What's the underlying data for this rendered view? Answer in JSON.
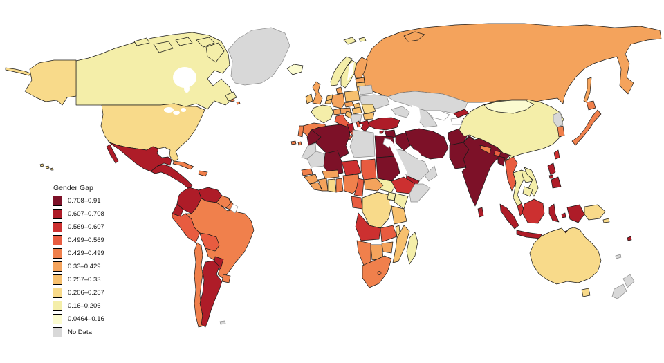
{
  "legend": {
    "title": "Gender Gap",
    "items": [
      {
        "label": "0.708–0.91",
        "color": "#7d1128"
      },
      {
        "label": "0.607–0.708",
        "color": "#ae1c28"
      },
      {
        "label": "0.569–0.607",
        "color": "#cc3030"
      },
      {
        "label": "0.499–0.569",
        "color": "#e85c40"
      },
      {
        "label": "0.429–0.499",
        "color": "#f0804c"
      },
      {
        "label": "0.33–0.429",
        "color": "#f4a35c"
      },
      {
        "label": "0.257–0.33",
        "color": "#f7c06e"
      },
      {
        "label": "0.206–0.257",
        "color": "#f8da8a"
      },
      {
        "label": "0.16–0.206",
        "color": "#f4eea9"
      },
      {
        "label": "0.0464–0.16",
        "color": "#fbfbd0"
      },
      {
        "label": "No Data",
        "color": "#d8d8d8"
      }
    ]
  },
  "colors": {
    "background": "#ffffff",
    "country_border": "#1a1a1a",
    "no_data_border": "#8a8a8a",
    "unfilled_border": "#999999"
  },
  "chart_data": {
    "type": "choropleth",
    "title": "Gender Gap",
    "legend_position": "left-bottom",
    "bins": [
      {
        "label": "0.708–0.91",
        "color": "#7d1128"
      },
      {
        "label": "0.607–0.708",
        "color": "#ae1c28"
      },
      {
        "label": "0.569–0.607",
        "color": "#cc3030"
      },
      {
        "label": "0.499–0.569",
        "color": "#e85c40"
      },
      {
        "label": "0.429–0.499",
        "color": "#f0804c"
      },
      {
        "label": "0.33–0.429",
        "color": "#f4a35c"
      },
      {
        "label": "0.257–0.33",
        "color": "#f7c06e"
      },
      {
        "label": "0.206–0.257",
        "color": "#f8da8a"
      },
      {
        "label": "0.16–0.206",
        "color": "#f4eea9"
      },
      {
        "label": "0.0464–0.16",
        "color": "#fbfbd0"
      },
      {
        "label": "No Data",
        "color": "#d8d8d8"
      }
    ],
    "countries": [
      {
        "name": "Russia",
        "bin": "0.33–0.429"
      },
      {
        "name": "Kazakhstan",
        "bin": "No Data"
      },
      {
        "name": "Turkmenistan",
        "bin": "No Data"
      },
      {
        "name": "Kyrgyzstan",
        "bin": "0.607–0.708"
      },
      {
        "name": "Caucasus",
        "bin": "No Data"
      },
      {
        "name": "Norway",
        "bin": "0.16–0.206"
      },
      {
        "name": "Sweden",
        "bin": "0.16–0.206"
      },
      {
        "name": "Finland",
        "bin": "0.33–0.429"
      },
      {
        "name": "Estonia",
        "bin": "0.33–0.429"
      },
      {
        "name": "Latvia",
        "bin": "0.257–0.33"
      },
      {
        "name": "Lithuania",
        "bin": "0.257–0.33"
      },
      {
        "name": "Belarus",
        "bin": "No Data"
      },
      {
        "name": "Ukraine",
        "bin": "No Data"
      },
      {
        "name": "Poland",
        "bin": "0.257–0.33"
      },
      {
        "name": "Germany",
        "bin": "0.33–0.429"
      },
      {
        "name": "Denmark",
        "bin": "0.33–0.429"
      },
      {
        "name": "Netherlands",
        "bin": "0.257–0.33"
      },
      {
        "name": "Belgium",
        "bin": "0.257–0.33"
      },
      {
        "name": "France",
        "bin": "0.16–0.206"
      },
      {
        "name": "United Kingdom",
        "bin": "0.33–0.429"
      },
      {
        "name": "Ireland",
        "bin": "0.257–0.33"
      },
      {
        "name": "Spain",
        "bin": "0.429–0.499"
      },
      {
        "name": "Portugal",
        "bin": "0.429–0.499"
      },
      {
        "name": "Italy",
        "bin": "0.499–0.569"
      },
      {
        "name": "Czechia",
        "bin": "0.33–0.429"
      },
      {
        "name": "Slovakia",
        "bin": "0.257–0.33"
      },
      {
        "name": "Austria",
        "bin": "0.33–0.429"
      },
      {
        "name": "Switzerland",
        "bin": "0.33–0.429"
      },
      {
        "name": "Hungary",
        "bin": "0.257–0.33"
      },
      {
        "name": "Romania",
        "bin": "0.206–0.257"
      },
      {
        "name": "Bulgaria",
        "bin": "0.257–0.33"
      },
      {
        "name": "Western Balkans",
        "bin": "No Data"
      },
      {
        "name": "Croatia",
        "bin": "0.257–0.33"
      },
      {
        "name": "Albania",
        "bin": "0.499–0.569"
      },
      {
        "name": "Greece",
        "bin": "0.607–0.708"
      },
      {
        "name": "Iceland",
        "bin": "0.0464–0.16"
      },
      {
        "name": "Turkey",
        "bin": "0.607–0.708"
      },
      {
        "name": "Cyprus",
        "bin": "0.607–0.708"
      },
      {
        "name": "Syria",
        "bin": "0.708–0.91"
      },
      {
        "name": "Iraq",
        "bin": "0.708–0.91"
      },
      {
        "name": "Iran",
        "bin": "0.708–0.91"
      },
      {
        "name": "Saudi Arabia",
        "bin": "No Data"
      },
      {
        "name": "Yemen",
        "bin": "0.607–0.708"
      },
      {
        "name": "Oman",
        "bin": "No Data"
      },
      {
        "name": "Afghanistan",
        "bin": "0.708–0.91"
      },
      {
        "name": "Pakistan",
        "bin": "0.708–0.91"
      },
      {
        "name": "India",
        "bin": "0.708–0.91"
      },
      {
        "name": "Nepal",
        "bin": "0.429–0.499"
      },
      {
        "name": "Bhutan",
        "bin": "0.499–0.569"
      },
      {
        "name": "Bangladesh",
        "bin": "0.708–0.91"
      },
      {
        "name": "Sri Lanka",
        "bin": "0.607–0.708"
      },
      {
        "name": "Myanmar",
        "bin": "0.499–0.569"
      },
      {
        "name": "Thailand",
        "bin": "0.16–0.206"
      },
      {
        "name": "Laos",
        "bin": "0.16–0.206"
      },
      {
        "name": "Vietnam",
        "bin": "0.16–0.206"
      },
      {
        "name": "Cambodia",
        "bin": "0.16–0.206"
      },
      {
        "name": "Malaysia",
        "bin": "0.569–0.607"
      },
      {
        "name": "China",
        "bin": "0.16–0.206"
      },
      {
        "name": "Mongolia",
        "bin": "0.0464–0.16"
      },
      {
        "name": "North Korea",
        "bin": "No Data"
      },
      {
        "name": "South Korea",
        "bin": "0.429–0.499"
      },
      {
        "name": "Japan",
        "bin": "0.429–0.499"
      },
      {
        "name": "Taiwan",
        "bin": "0.569–0.607"
      },
      {
        "name": "Philippines",
        "bin": "0.607–0.708"
      },
      {
        "name": "Indonesia",
        "bin": "0.607–0.708"
      },
      {
        "name": "Papua New Guinea",
        "bin": "0.206–0.257"
      },
      {
        "name": "Morocco",
        "bin": "0.708–0.91"
      },
      {
        "name": "Western Sahara",
        "bin": "No Data"
      },
      {
        "name": "Algeria",
        "bin": "0.708–0.91"
      },
      {
        "name": "Tunisia",
        "bin": "0.607–0.708"
      },
      {
        "name": "Libya",
        "bin": "No Data"
      },
      {
        "name": "Egypt",
        "bin": "0.708–0.91"
      },
      {
        "name": "Mauritania",
        "bin": "No Data"
      },
      {
        "name": "Mali",
        "bin": "0.708–0.91"
      },
      {
        "name": "Niger",
        "bin": "0.569–0.607"
      },
      {
        "name": "Chad",
        "bin": "0.499–0.569"
      },
      {
        "name": "Sudan",
        "bin": "0.708–0.91"
      },
      {
        "name": "South Sudan",
        "bin": "0.16–0.206"
      },
      {
        "name": "Ethiopia",
        "bin": "0.569–0.607"
      },
      {
        "name": "Somalia",
        "bin": "No Data"
      },
      {
        "name": "Senegal",
        "bin": "0.429–0.499"
      },
      {
        "name": "Guinea",
        "bin": "0.33–0.429"
      },
      {
        "name": "Liberia & Sierra Leone",
        "bin": "0.33–0.429"
      },
      {
        "name": "Ivory Coast",
        "bin": "0.33–0.429"
      },
      {
        "name": "Ghana",
        "bin": "0.206–0.257"
      },
      {
        "name": "Burkina Faso",
        "bin": "0.33–0.429"
      },
      {
        "name": "Benin & Togo",
        "bin": "0.429–0.499"
      },
      {
        "name": "Nigeria",
        "bin": "0.429–0.499"
      },
      {
        "name": "Cameroon",
        "bin": "0.499–0.569"
      },
      {
        "name": "Central African Republic",
        "bin": "0.33–0.429"
      },
      {
        "name": "Gabon & Congo",
        "bin": "0.499–0.569"
      },
      {
        "name": "DR Congo",
        "bin": "0.206–0.257"
      },
      {
        "name": "Uganda",
        "bin": "0.16–0.206"
      },
      {
        "name": "Kenya",
        "bin": "0.16–0.206"
      },
      {
        "name": "Tanzania",
        "bin": "0.257–0.33"
      },
      {
        "name": "Angola",
        "bin": "0.569–0.607"
      },
      {
        "name": "Zambia",
        "bin": "0.499–0.569"
      },
      {
        "name": "Malawi",
        "bin": "0.206–0.257"
      },
      {
        "name": "Mozambique",
        "bin": "0.257–0.33"
      },
      {
        "name": "Zimbabwe",
        "bin": "0.33–0.429"
      },
      {
        "name": "Botswana",
        "bin": "0.33–0.429"
      },
      {
        "name": "Namibia",
        "bin": "0.429–0.499"
      },
      {
        "name": "South Africa",
        "bin": "0.429–0.499"
      },
      {
        "name": "Lesotho",
        "bin": "0.429–0.499"
      },
      {
        "name": "Madagascar",
        "bin": "0.16–0.206"
      },
      {
        "name": "Greenland",
        "bin": "No Data"
      },
      {
        "name": "Canada",
        "bin": "0.16–0.206"
      },
      {
        "name": "United States",
        "bin": "0.206–0.257"
      },
      {
        "name": "Mexico",
        "bin": "0.607–0.708"
      },
      {
        "name": "Central America",
        "bin": "0.607–0.708"
      },
      {
        "name": "Cuba",
        "bin": "0.429–0.499"
      },
      {
        "name": "Hispaniola",
        "bin": "0.429–0.499"
      },
      {
        "name": "Colombia",
        "bin": "0.607–0.708"
      },
      {
        "name": "Venezuela",
        "bin": "0.607–0.708"
      },
      {
        "name": "Guyana",
        "bin": "0.429–0.499"
      },
      {
        "name": "Suriname",
        "bin": "0.429–0.499"
      },
      {
        "name": "Ecuador",
        "bin": "0.607–0.708"
      },
      {
        "name": "Peru",
        "bin": "0.499–0.569"
      },
      {
        "name": "Brazil",
        "bin": "0.429–0.499"
      },
      {
        "name": "Bolivia",
        "bin": "0.499–0.569"
      },
      {
        "name": "Paraguay",
        "bin": "0.607–0.708"
      },
      {
        "name": "Uruguay",
        "bin": "0.429–0.499"
      },
      {
        "name": "Chile",
        "bin": "0.429–0.499"
      },
      {
        "name": "Argentina",
        "bin": "0.607–0.708"
      },
      {
        "name": "Falkland Islands",
        "bin": "No Data"
      },
      {
        "name": "Australia",
        "bin": "0.206–0.257"
      },
      {
        "name": "New Zealand",
        "bin": "No Data"
      },
      {
        "name": "Fiji",
        "bin": "0.607–0.708"
      },
      {
        "name": "New Caledonia",
        "bin": "No Data"
      }
    ],
    "uncolored_countries": [
      "French Guiana",
      "Uzbekistan",
      "Tajikistan",
      "Jordan & Israel"
    ]
  }
}
